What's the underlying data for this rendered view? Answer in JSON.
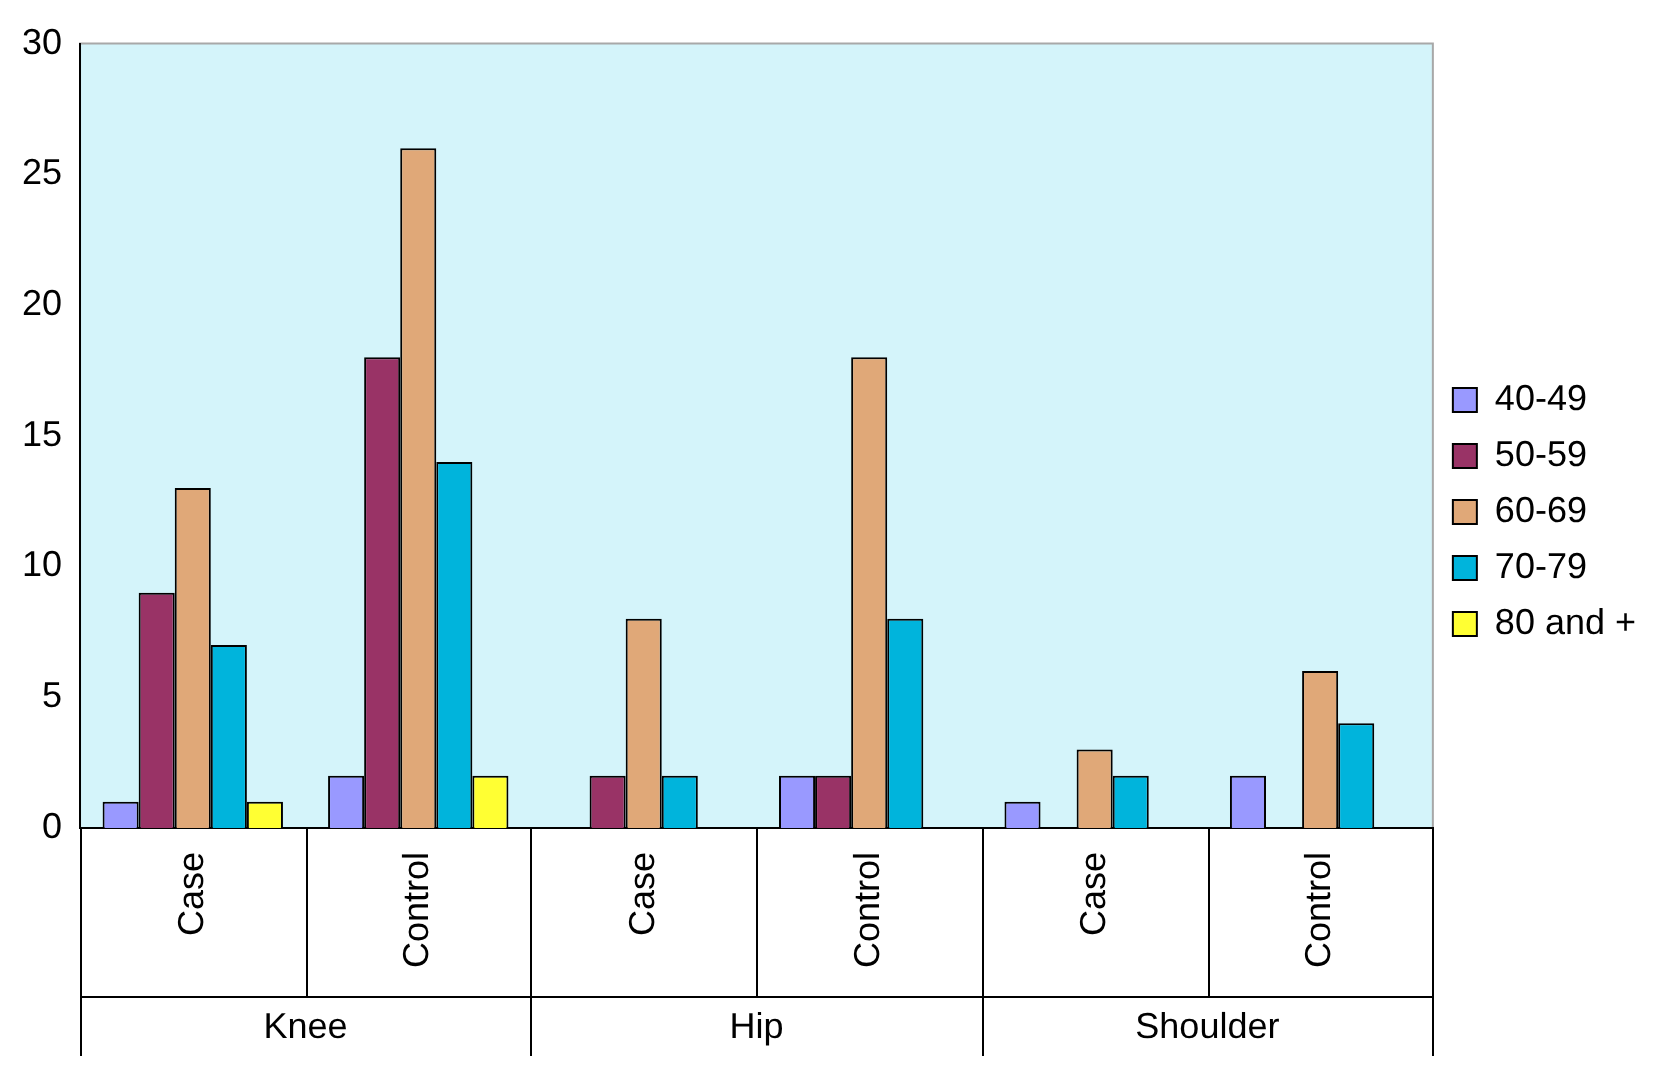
{
  "chart_data": {
    "type": "bar",
    "categories": [
      "Case",
      "Control",
      "Case",
      "Control",
      "Case",
      "Control"
    ],
    "series": [
      {
        "name": "40-49",
        "color": "#9999ff",
        "values": [
          1,
          2,
          0,
          2,
          1,
          2
        ]
      },
      {
        "name": "50-59",
        "color": "#993366",
        "values": [
          9,
          18,
          2,
          2,
          0,
          0
        ]
      },
      {
        "name": "60-69",
        "color": "#e0a878",
        "values": [
          13,
          26,
          8,
          18,
          3,
          6
        ]
      },
      {
        "name": "70-79",
        "color": "#00b4dc",
        "values": [
          7,
          14,
          2,
          8,
          2,
          4
        ]
      },
      {
        "name": "80 and +",
        "color": "#ffff33",
        "values": [
          1,
          2,
          0,
          0,
          0,
          0
        ]
      }
    ],
    "annotations": [
      "Knee",
      "Hip",
      "Shoulder"
    ],
    "ylim": [
      0,
      30
    ],
    "yticks": [
      0,
      5,
      10,
      15,
      20,
      25,
      30
    ],
    "grid": false,
    "legend": "right"
  }
}
